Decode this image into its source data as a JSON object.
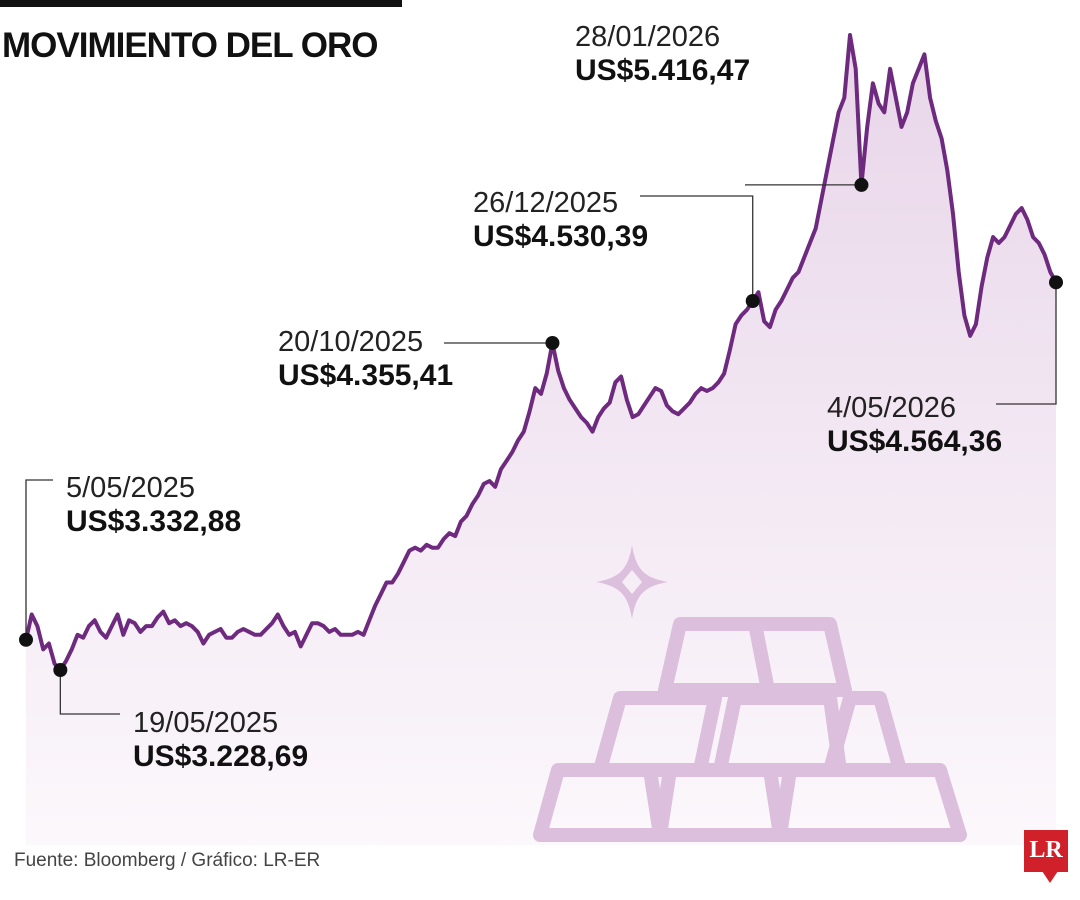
{
  "title": "MOVIMIENTO DEL ORO",
  "source": "Fuente: Bloomberg / Gráfico: LR-ER",
  "logo_text": "LR",
  "colors": {
    "line": "#6e2a7e",
    "fill": "#f1e6f1",
    "bars": "#dcbfdd",
    "marker": "#111111"
  },
  "chart_data": {
    "type": "area",
    "title": "MOVIMIENTO DEL ORO",
    "xlabel": "",
    "ylabel": "",
    "grid": false,
    "ylim": [
      2800,
      5500
    ],
    "x_range": [
      "5/05/2025",
      "4/05/2026"
    ],
    "series": [
      {
        "values": [
          3332.88,
          3420,
          3380,
          3300,
          3320,
          3250,
          3228.69,
          3260,
          3300,
          3350,
          3340,
          3380,
          3400,
          3360,
          3340,
          3380,
          3420,
          3350,
          3400,
          3390,
          3360,
          3380,
          3380,
          3410,
          3430,
          3390,
          3400,
          3380,
          3390,
          3380,
          3360,
          3320,
          3350,
          3360,
          3370,
          3340,
          3340,
          3360,
          3370,
          3360,
          3350,
          3350,
          3370,
          3390,
          3420,
          3380,
          3350,
          3360,
          3310,
          3350,
          3390,
          3390,
          3380,
          3360,
          3370,
          3350,
          3350,
          3350,
          3360,
          3350,
          3400,
          3450,
          3490,
          3530,
          3530,
          3560,
          3600,
          3640,
          3650,
          3640,
          3660,
          3650,
          3650,
          3680,
          3700,
          3690,
          3740,
          3760,
          3800,
          3830,
          3870,
          3880,
          3860,
          3920,
          3950,
          3980,
          4020,
          4050,
          4120,
          4200,
          4180,
          4250,
          4355.41,
          4260,
          4200,
          4160,
          4130,
          4100,
          4080,
          4050,
          4100,
          4130,
          4150,
          4220,
          4240,
          4160,
          4100,
          4110,
          4140,
          4170,
          4200,
          4190,
          4140,
          4120,
          4110,
          4130,
          4150,
          4180,
          4200,
          4190,
          4200,
          4220,
          4250,
          4330,
          4420,
          4450,
          4470,
          4500,
          4530.39,
          4430,
          4410,
          4470,
          4500,
          4540,
          4580,
          4600,
          4650,
          4700,
          4750,
          4850,
          4950,
          5050,
          5150,
          5200,
          5416.47,
          5300,
          4900,
          5100,
          5250,
          5180,
          5150,
          5300,
          5200,
          5100,
          5150,
          5250,
          5300,
          5350,
          5200,
          5120,
          5060,
          4950,
          4800,
          4600,
          4450,
          4380,
          4420,
          4550,
          4650,
          4720,
          4700,
          4720,
          4760,
          4800,
          4820,
          4780,
          4720,
          4700,
          4660,
          4600,
          4564.36
        ]
      }
    ],
    "annotations": [
      {
        "date": "5/05/2025",
        "value": "US$3.332,88"
      },
      {
        "date": "19/05/2025",
        "value": "US$3.228,69"
      },
      {
        "date": "20/10/2025",
        "value": "US$4.355,41"
      },
      {
        "date": "26/12/2025",
        "value": "US$4.530,39"
      },
      {
        "date": "28/01/2026",
        "value": "US$5.416,47"
      },
      {
        "date": "4/05/2026",
        "value": "US$4.564,36"
      }
    ]
  }
}
